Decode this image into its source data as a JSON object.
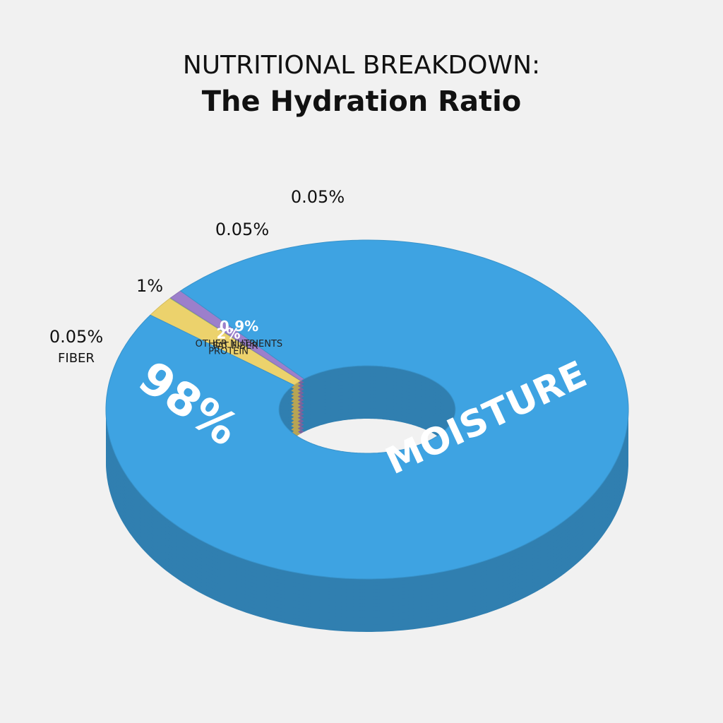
{
  "chart_data": {
    "type": "donut",
    "title": "NUTRITIONAL BREAKDOWN:",
    "subtitle": "The Hydration Ratio",
    "categories": [
      "PROTEIN",
      "FAT FIBER",
      "OTHER NUTRIENTS",
      "MOISTURE"
    ],
    "values": [
      2,
      0.05,
      0.9,
      98
    ],
    "value_labels": [
      "2%",
      null,
      "0.9%",
      "98%"
    ],
    "colors": [
      "#ecd26c",
      "#9fd07a",
      "#9c7fcb",
      "#3ea3e2"
    ],
    "annotations": [
      "0.05%",
      "FIBER",
      "1%",
      "0.05%",
      "0.05%"
    ]
  }
}
